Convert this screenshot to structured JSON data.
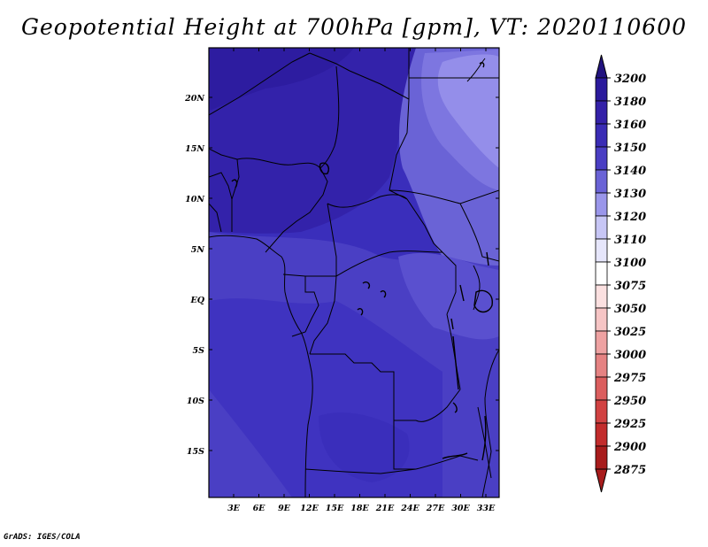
{
  "title": "Geopotential Height at 700hPa [gpm], VT: 2020110600",
  "credit": "GrADS: IGES/COLA",
  "map": {
    "lat_labels": [
      "20N",
      "15N",
      "10N",
      "5N",
      "EQ",
      "5S",
      "10S",
      "15S"
    ],
    "lon_labels": [
      "3E",
      "6E",
      "9E",
      "12E",
      "15E",
      "18E",
      "21E",
      "24E",
      "27E",
      "30E",
      "33E"
    ]
  },
  "colorbar": {
    "levels": [
      "3200",
      "3180",
      "3160",
      "3150",
      "3140",
      "3130",
      "3120",
      "3110",
      "3100",
      "3075",
      "3050",
      "3025",
      "3000",
      "2975",
      "2950",
      "2925",
      "2900",
      "2875"
    ],
    "colors": {
      "3180": "#2b1a9c",
      "3160": "#3421a8",
      "3150": "#3a2cb5",
      "3140": "#4a3ec3",
      "3130": "#6a63d6",
      "3120": "#9a96ea",
      "3110": "#c7c6f5",
      "3100": "#e6e6fb",
      "3075": "#ffffff",
      "3050": "#fbe0e0",
      "3025": "#f6c5c5",
      "3000": "#eea2a2",
      "2975": "#e58282",
      "2950": "#db5e5e",
      "2925": "#d14242",
      "2900": "#c22c2c",
      "2875": "#a81c1c",
      "top": "#22137f"
    }
  },
  "field_colors": {
    "deep": "#2d1ca0",
    "dark": "#3322aa",
    "mid": "#3a2ebb",
    "light": "#4a3fc4",
    "pale": "#7a74dc",
    "palest": "#a49ff0"
  }
}
